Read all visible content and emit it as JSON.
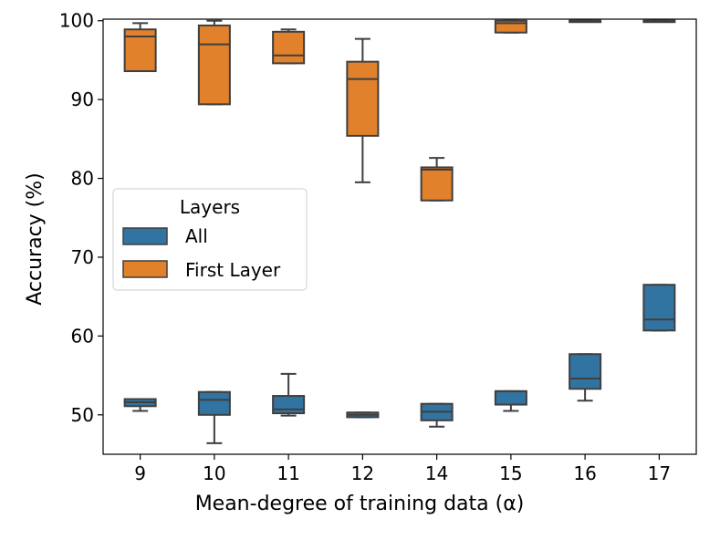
{
  "chart_data": {
    "type": "boxplot",
    "xlabel": "Mean-degree of training data (α)",
    "ylabel": "Accuracy (%)",
    "ylim": [
      45,
      100.2
    ],
    "yticks": [
      50,
      60,
      70,
      80,
      90,
      100
    ],
    "categories": [
      "9",
      "10",
      "11",
      "12",
      "14",
      "15",
      "16",
      "17"
    ],
    "legend": {
      "title": "Layers",
      "placement": "center-left"
    },
    "series": [
      {
        "name": "All",
        "color": "#3274a1",
        "boxes": [
          {
            "whislo": 50.5,
            "q1": 51.1,
            "med": 51.6,
            "q3": 52.0,
            "whishi": 52.0
          },
          {
            "whislo": 46.4,
            "q1": 50.0,
            "med": 51.9,
            "q3": 52.9,
            "whishi": 52.9
          },
          {
            "whislo": 49.9,
            "q1": 50.2,
            "med": 50.7,
            "q3": 52.4,
            "whishi": 55.2
          },
          {
            "whislo": 49.7,
            "q1": 49.7,
            "med": 50.0,
            "q3": 50.3,
            "whishi": 50.3
          },
          {
            "whislo": 48.5,
            "q1": 49.3,
            "med": 50.4,
            "q3": 51.4,
            "whishi": 51.4
          },
          {
            "whislo": 50.5,
            "q1": 51.3,
            "med": 53.0,
            "q3": 53.0,
            "whishi": 53.0
          },
          {
            "whislo": 51.8,
            "q1": 53.3,
            "med": 54.6,
            "q3": 57.7,
            "whishi": 57.7
          },
          {
            "whislo": 60.7,
            "q1": 60.7,
            "med": 62.1,
            "q3": 66.5,
            "whishi": 66.5
          }
        ]
      },
      {
        "name": "First Layer",
        "color": "#e1812c",
        "boxes": [
          {
            "whislo": 93.6,
            "q1": 93.6,
            "med": 98.0,
            "q3": 98.9,
            "whishi": 99.7
          },
          {
            "whislo": 89.4,
            "q1": 89.4,
            "med": 97.0,
            "q3": 99.4,
            "whishi": 100.0
          },
          {
            "whislo": 94.6,
            "q1": 94.6,
            "med": 95.6,
            "q3": 98.6,
            "whishi": 98.9
          },
          {
            "whislo": 79.5,
            "q1": 85.4,
            "med": 92.6,
            "q3": 94.8,
            "whishi": 97.7
          },
          {
            "whislo": 77.2,
            "q1": 77.2,
            "med": 81.1,
            "q3": 81.4,
            "whishi": 82.6
          },
          {
            "whislo": 98.5,
            "q1": 98.5,
            "med": 99.7,
            "q3": 100.0,
            "whishi": 100.0
          },
          {
            "whislo": 99.9,
            "q1": 99.9,
            "med": 100.0,
            "q3": 100.0,
            "whishi": 100.0
          },
          {
            "whislo": 99.9,
            "q1": 99.9,
            "med": 100.0,
            "q3": 100.0,
            "whishi": 100.0
          }
        ]
      }
    ]
  }
}
